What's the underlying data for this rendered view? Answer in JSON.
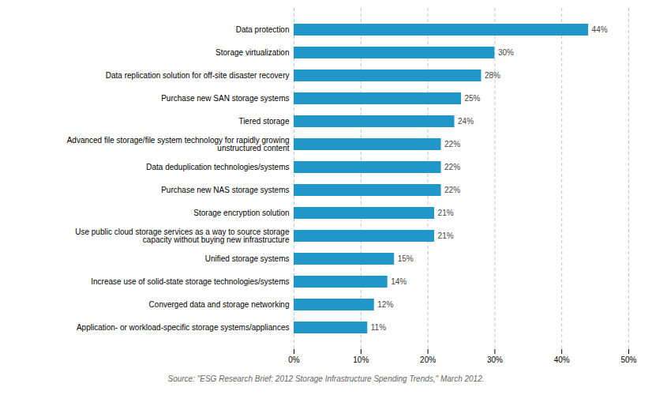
{
  "chart_data": {
    "type": "bar",
    "orientation": "horizontal",
    "categories": [
      "Application- or workload-specific storage systems/appliances",
      "Converged data and storage networking",
      "Increase use of solid-state storage technologies/systems",
      "Unified storage systems",
      "Use public cloud storage services as a way to source storage\ncapacity without buying new infrastructure",
      "Storage encryption solution",
      "Purchase new NAS storage systems",
      "Data deduplication technologies/systems",
      "Advanced file storage/file system technology for rapidly growing\nunstructured content",
      "Tiered storage",
      "Purchase new SAN storage systems",
      "Data replication solution for off-site disaster recovery",
      "Storage virtualization",
      "Data protection"
    ],
    "values": [
      11,
      12,
      14,
      15,
      21,
      21,
      22,
      22,
      22,
      24,
      25,
      28,
      30,
      44
    ],
    "value_labels": [
      "11%",
      "12%",
      "14%",
      "15%",
      "21%",
      "21%",
      "22%",
      "22%",
      "22%",
      "24%",
      "25%",
      "28%",
      "30%",
      "44%"
    ],
    "data_labels": true,
    "color": "#2196c8",
    "xlim": [
      0,
      50
    ],
    "xticks": [
      {
        "value": 0,
        "label": "0%"
      },
      {
        "value": 10,
        "label": "10%"
      },
      {
        "value": 20,
        "label": "20%"
      },
      {
        "value": 30,
        "label": "30%"
      },
      {
        "value": 40,
        "label": "40%"
      },
      {
        "value": 50,
        "label": "50%"
      }
    ],
    "grid": true,
    "source": "Source: \"ESG Research Brief: 2012 Storage Infrastructure Spending Trends,\" March 2012."
  }
}
